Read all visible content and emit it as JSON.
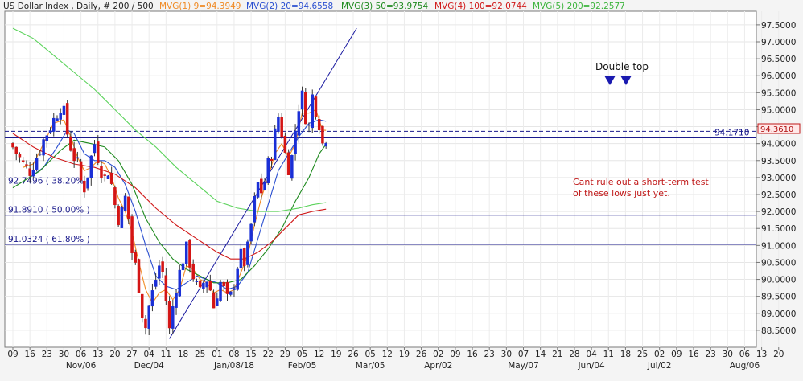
{
  "header": {
    "symbol": "US Dollar Index , Daily, # 200 / 500",
    "mvg": [
      {
        "label": "MVG(1) 9=94.3949",
        "color": "#f08a24"
      },
      {
        "label": "MVG(2) 20=94.6558",
        "color": "#2a4fd0"
      },
      {
        "label": "MVG(3) 50=93.9754",
        "color": "#1f8a1f"
      },
      {
        "label": "MVG(4) 100=92.0744",
        "color": "#d01818"
      },
      {
        "label": "MVG(5) 200=92.2577",
        "color": "#5cd35c"
      }
    ]
  },
  "price_box": "94.3610",
  "annotations": {
    "double_top": "Double top",
    "note_line1": "Cant rule out a short-term test",
    "note_line2": "of these lows just yet."
  },
  "levels": [
    {
      "value": 94.171,
      "label": "94.1710",
      "style": "solid",
      "color": "#1a1a8c"
    },
    {
      "value": 94.361,
      "label": "",
      "style": "dashed",
      "color": "#1a1a8c"
    },
    {
      "value": 92.7496,
      "label": "92.7496 ( 38.20% )",
      "style": "solid",
      "color": "#1a1a8c"
    },
    {
      "value": 91.891,
      "label": "91.8910 ( 50.00% )",
      "style": "solid",
      "color": "#1a1a8c"
    },
    {
      "value": 91.0324,
      "label": "91.0324 ( 61.80% )",
      "style": "solid",
      "color": "#1a1a8c"
    }
  ],
  "chart_data": {
    "type": "candlestick",
    "title": "US Dollar Index , Daily, # 200 / 500",
    "y_range": [
      88.0,
      97.9
    ],
    "y_ticks": [
      88.5,
      89.0,
      89.5,
      90.0,
      90.5,
      91.0,
      91.5,
      92.0,
      92.5,
      93.0,
      93.5,
      94.0,
      94.5,
      95.0,
      95.5,
      96.0,
      96.5,
      97.0,
      97.5
    ],
    "y_tick_labels": [
      "88.5000",
      "89.0000",
      "89.5000",
      "90.0000",
      "90.5000",
      "91.0000",
      "91.5000",
      "92.0000",
      "92.5000",
      "93.0000",
      "93.5000",
      "94.0000",
      "94.5000",
      "95.0000",
      "95.5000",
      "96.0000",
      "96.5000",
      "97.0000",
      "97.5000"
    ],
    "x_tick_labels": [
      "09",
      "16",
      "23",
      "30",
      "06",
      "13",
      "20",
      "27",
      "04",
      "11",
      "18",
      "25",
      "01",
      "08",
      "15",
      "22",
      "29",
      "05",
      "12",
      "19",
      "26",
      "05",
      "12",
      "19",
      "26",
      "02",
      "09",
      "16",
      "23",
      "30",
      "07",
      "14",
      "21",
      "28",
      "04",
      "11",
      "18",
      "25",
      "02",
      "09",
      "16",
      "23",
      "30",
      "06",
      "13",
      "20"
    ],
    "x_month_labels": [
      {
        "label": "Nov/06",
        "tick_index": 4
      },
      {
        "label": "Dec/04",
        "tick_index": 8
      },
      {
        "label": "Jan/08/18",
        "tick_index": 13
      },
      {
        "label": "Feb/05",
        "tick_index": 17
      },
      {
        "label": "Mar/05",
        "tick_index": 21
      },
      {
        "label": "Apr/02",
        "tick_index": 25
      },
      {
        "label": "May/07",
        "tick_index": 30
      },
      {
        "label": "Jun/04",
        "tick_index": 34
      },
      {
        "label": "Jul/02",
        "tick_index": 38
      },
      {
        "label": "Aug/06",
        "tick_index": 43
      }
    ],
    "price_path": [
      [
        0,
        93.9
      ],
      [
        3,
        93.4
      ],
      [
        5,
        93.2
      ],
      [
        7,
        93.6
      ],
      [
        9,
        94.1
      ],
      [
        11,
        94.5
      ],
      [
        13,
        94.9
      ],
      [
        14,
        95.1
      ],
      [
        15,
        94.9
      ],
      [
        16,
        94.3
      ],
      [
        17,
        93.9
      ],
      [
        18,
        93.6
      ],
      [
        19,
        93.4
      ],
      [
        20,
        92.9
      ],
      [
        21,
        92.7
      ],
      [
        22,
        93.1
      ],
      [
        23,
        93.6
      ],
      [
        24,
        94.0
      ],
      [
        25,
        93.6
      ],
      [
        26,
        93.2
      ],
      [
        27,
        93.0
      ],
      [
        28,
        93.2
      ],
      [
        29,
        92.8
      ],
      [
        30,
        92.2
      ],
      [
        31,
        91.8
      ],
      [
        32,
        92.0
      ],
      [
        33,
        92.4
      ],
      [
        34,
        91.8
      ],
      [
        35,
        90.8
      ],
      [
        36,
        90.4
      ],
      [
        37,
        89.8
      ],
      [
        38,
        89.0
      ],
      [
        39,
        88.6
      ],
      [
        40,
        89.2
      ],
      [
        41,
        89.6
      ],
      [
        42,
        90.0
      ],
      [
        43,
        90.4
      ],
      [
        44,
        90.2
      ],
      [
        45,
        89.4
      ],
      [
        46,
        88.5
      ],
      [
        47,
        89.2
      ],
      [
        48,
        89.8
      ],
      [
        49,
        90.2
      ],
      [
        50,
        90.6
      ],
      [
        51,
        90.9
      ],
      [
        52,
        90.5
      ],
      [
        53,
        90.1
      ],
      [
        54,
        89.8
      ],
      [
        55,
        89.6
      ],
      [
        56,
        89.9
      ],
      [
        57,
        90.0
      ],
      [
        58,
        89.7
      ],
      [
        59,
        89.2
      ],
      [
        60,
        89.6
      ],
      [
        61,
        89.9
      ],
      [
        62,
        89.7
      ],
      [
        63,
        89.4
      ],
      [
        64,
        89.5
      ],
      [
        65,
        89.9
      ],
      [
        66,
        90.4
      ],
      [
        67,
        90.7
      ],
      [
        68,
        90.5
      ],
      [
        69,
        90.9
      ],
      [
        70,
        91.6
      ],
      [
        71,
        92.3
      ],
      [
        72,
        92.8
      ],
      [
        73,
        92.6
      ],
      [
        74,
        92.9
      ],
      [
        75,
        93.4
      ],
      [
        76,
        93.7
      ],
      [
        77,
        94.3
      ],
      [
        78,
        94.8
      ],
      [
        79,
        94.3
      ],
      [
        80,
        93.7
      ],
      [
        81,
        93.3
      ],
      [
        82,
        93.6
      ],
      [
        83,
        94.4
      ],
      [
        84,
        95.1
      ],
      [
        85,
        95.4
      ],
      [
        86,
        94.8
      ],
      [
        87,
        94.5
      ],
      [
        88,
        95.4
      ],
      [
        89,
        95.0
      ],
      [
        90,
        94.6
      ],
      [
        91,
        94.0
      ],
      [
        92,
        94.2
      ]
    ],
    "trendlines": [
      {
        "from": [
          46,
          88.25
        ],
        "to": [
          101,
          97.4
        ],
        "color": "#1a1aa0"
      }
    ],
    "moving_averages": [
      {
        "name": "MVG(1) 9",
        "color": "#f08a24",
        "points": [
          [
            3,
            93.3
          ],
          [
            6,
            93.4
          ],
          [
            9,
            94.0
          ],
          [
            12,
            94.6
          ],
          [
            15,
            94.7
          ],
          [
            17,
            94.2
          ],
          [
            19,
            93.6
          ],
          [
            21,
            93.2
          ],
          [
            23,
            93.3
          ],
          [
            25,
            93.5
          ],
          [
            27,
            93.4
          ],
          [
            29,
            93.0
          ],
          [
            31,
            92.4
          ],
          [
            33,
            92.0
          ],
          [
            35,
            91.4
          ],
          [
            37,
            90.5
          ],
          [
            39,
            89.7
          ],
          [
            41,
            89.3
          ],
          [
            43,
            89.6
          ],
          [
            45,
            89.7
          ],
          [
            47,
            89.4
          ],
          [
            49,
            89.7
          ],
          [
            51,
            90.4
          ],
          [
            53,
            90.3
          ],
          [
            55,
            90.0
          ],
          [
            57,
            89.9
          ],
          [
            59,
            89.6
          ],
          [
            61,
            89.7
          ],
          [
            63,
            89.6
          ],
          [
            65,
            89.7
          ],
          [
            67,
            90.2
          ],
          [
            69,
            90.7
          ],
          [
            71,
            91.6
          ],
          [
            73,
            92.4
          ],
          [
            75,
            93.0
          ],
          [
            77,
            93.7
          ],
          [
            79,
            94.0
          ],
          [
            81,
            93.6
          ],
          [
            83,
            94.0
          ],
          [
            85,
            94.9
          ],
          [
            87,
            94.9
          ],
          [
            89,
            95.0
          ],
          [
            91,
            94.4
          ],
          [
            92,
            94.39
          ]
        ]
      },
      {
        "name": "MVG(2) 20",
        "color": "#2a4fd0",
        "points": [
          [
            5,
            93.0
          ],
          [
            9,
            93.3
          ],
          [
            13,
            93.9
          ],
          [
            16,
            94.4
          ],
          [
            18,
            94.3
          ],
          [
            21,
            93.7
          ],
          [
            24,
            93.5
          ],
          [
            27,
            93.5
          ],
          [
            30,
            93.3
          ],
          [
            33,
            92.8
          ],
          [
            36,
            92.0
          ],
          [
            39,
            91.0
          ],
          [
            42,
            90.1
          ],
          [
            45,
            89.8
          ],
          [
            48,
            89.7
          ],
          [
            51,
            89.9
          ],
          [
            54,
            90.1
          ],
          [
            57,
            90.0
          ],
          [
            60,
            89.9
          ],
          [
            63,
            89.7
          ],
          [
            66,
            89.8
          ],
          [
            69,
            90.2
          ],
          [
            72,
            91.2
          ],
          [
            75,
            92.2
          ],
          [
            78,
            93.2
          ],
          [
            81,
            93.7
          ],
          [
            84,
            94.2
          ],
          [
            87,
            94.6
          ],
          [
            90,
            94.7
          ],
          [
            92,
            94.66
          ]
        ]
      },
      {
        "name": "MVG(3) 50",
        "color": "#1f8a1f",
        "points": [
          [
            0,
            92.7
          ],
          [
            8,
            93.2
          ],
          [
            14,
            93.8
          ],
          [
            18,
            94.1
          ],
          [
            23,
            94.0
          ],
          [
            27,
            93.9
          ],
          [
            31,
            93.5
          ],
          [
            35,
            92.8
          ],
          [
            39,
            91.8
          ],
          [
            43,
            91.1
          ],
          [
            47,
            90.6
          ],
          [
            51,
            90.3
          ],
          [
            55,
            90.1
          ],
          [
            59,
            89.9
          ],
          [
            63,
            89.9
          ],
          [
            67,
            90.0
          ],
          [
            71,
            90.4
          ],
          [
            75,
            90.9
          ],
          [
            79,
            91.5
          ],
          [
            83,
            92.3
          ],
          [
            87,
            93.0
          ],
          [
            90,
            93.7
          ],
          [
            92,
            93.98
          ]
        ]
      },
      {
        "name": "MVG(4) 100",
        "color": "#d01818",
        "points": [
          [
            0,
            94.3
          ],
          [
            6,
            93.9
          ],
          [
            12,
            93.6
          ],
          [
            18,
            93.4
          ],
          [
            24,
            93.3
          ],
          [
            30,
            93.1
          ],
          [
            36,
            92.7
          ],
          [
            42,
            92.1
          ],
          [
            48,
            91.6
          ],
          [
            54,
            91.2
          ],
          [
            60,
            90.8
          ],
          [
            64,
            90.6
          ],
          [
            68,
            90.6
          ],
          [
            72,
            90.8
          ],
          [
            76,
            91.1
          ],
          [
            80,
            91.5
          ],
          [
            84,
            91.9
          ],
          [
            88,
            92.0
          ],
          [
            92,
            92.07
          ]
        ]
      },
      {
        "name": "MVG(5) 200",
        "color": "#5cd35c",
        "points": [
          [
            0,
            97.4
          ],
          [
            6,
            97.1
          ],
          [
            12,
            96.6
          ],
          [
            18,
            96.1
          ],
          [
            24,
            95.6
          ],
          [
            30,
            95.0
          ],
          [
            36,
            94.4
          ],
          [
            42,
            93.9
          ],
          [
            48,
            93.3
          ],
          [
            54,
            92.8
          ],
          [
            60,
            92.3
          ],
          [
            66,
            92.1
          ],
          [
            72,
            92.0
          ],
          [
            78,
            92.0
          ],
          [
            84,
            92.1
          ],
          [
            88,
            92.2
          ],
          [
            92,
            92.26
          ]
        ]
      }
    ]
  }
}
